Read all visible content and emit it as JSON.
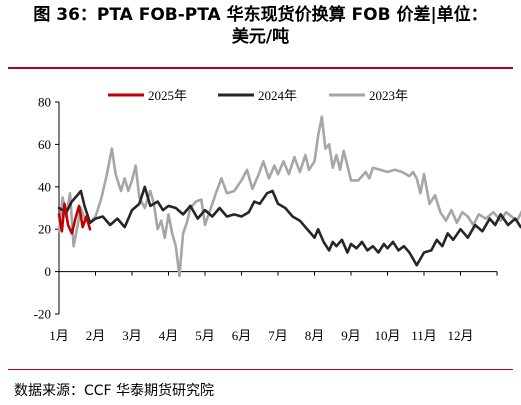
{
  "header": {
    "title_line1": "图 36：PTA FOB-PTA 华东现货价换算 FOB 价差|单位：",
    "title_line2": "美元/吨"
  },
  "footer": {
    "source": "数据来源：CCF  华泰期货研究院"
  },
  "chart_data": {
    "type": "line",
    "ylim": [
      -20,
      80
    ],
    "yticks": [
      "80",
      "60",
      "40",
      "20",
      "0",
      "-20"
    ],
    "xticks": [
      "1月",
      "2月",
      "3月",
      "4月",
      "5月",
      "6月",
      "7月",
      "8月",
      "9月",
      "10月",
      "11月",
      "12月"
    ],
    "grid": false,
    "legend_position": "top",
    "series": [
      {
        "name": "2025年",
        "color": "#c00000",
        "points": [
          [
            0.0,
            27
          ],
          [
            0.08,
            19
          ],
          [
            0.15,
            32
          ],
          [
            0.25,
            22
          ],
          [
            0.35,
            18
          ],
          [
            0.45,
            25
          ],
          [
            0.55,
            31
          ],
          [
            0.65,
            21
          ],
          [
            0.75,
            26
          ],
          [
            0.85,
            20
          ]
        ]
      },
      {
        "name": "2024年",
        "color": "#262626",
        "points": [
          [
            0.0,
            30
          ],
          [
            0.2,
            28
          ],
          [
            0.35,
            33
          ],
          [
            0.5,
            36
          ],
          [
            0.6,
            38
          ],
          [
            0.7,
            31
          ],
          [
            0.85,
            23
          ],
          [
            1.0,
            25
          ],
          [
            1.2,
            26
          ],
          [
            1.4,
            22
          ],
          [
            1.6,
            25
          ],
          [
            1.8,
            21
          ],
          [
            2.0,
            29
          ],
          [
            2.2,
            32
          ],
          [
            2.35,
            40
          ],
          [
            2.5,
            31
          ],
          [
            2.7,
            33
          ],
          [
            2.85,
            29
          ],
          [
            3.0,
            31
          ],
          [
            3.2,
            30
          ],
          [
            3.4,
            27
          ],
          [
            3.6,
            31
          ],
          [
            3.8,
            25
          ],
          [
            4.0,
            29
          ],
          [
            4.2,
            26
          ],
          [
            4.4,
            30
          ],
          [
            4.6,
            26
          ],
          [
            4.8,
            27
          ],
          [
            5.0,
            26
          ],
          [
            5.2,
            28
          ],
          [
            5.35,
            33
          ],
          [
            5.5,
            32
          ],
          [
            5.7,
            37
          ],
          [
            5.85,
            38
          ],
          [
            6.0,
            32
          ],
          [
            6.2,
            30
          ],
          [
            6.4,
            26
          ],
          [
            6.6,
            24
          ],
          [
            6.75,
            21
          ],
          [
            6.9,
            18
          ],
          [
            7.0,
            16
          ],
          [
            7.1,
            20
          ],
          [
            7.25,
            14
          ],
          [
            7.4,
            10
          ],
          [
            7.5,
            14
          ],
          [
            7.6,
            12
          ],
          [
            7.75,
            15
          ],
          [
            7.9,
            9
          ],
          [
            8.0,
            13
          ],
          [
            8.15,
            11
          ],
          [
            8.3,
            14
          ],
          [
            8.45,
            10
          ],
          [
            8.6,
            12
          ],
          [
            8.75,
            9
          ],
          [
            8.9,
            13
          ],
          [
            9.0,
            11
          ],
          [
            9.15,
            14
          ],
          [
            9.3,
            10
          ],
          [
            9.45,
            12
          ],
          [
            9.6,
            9
          ],
          [
            9.8,
            3
          ],
          [
            9.9,
            6
          ],
          [
            10.0,
            9
          ],
          [
            10.2,
            10
          ],
          [
            10.35,
            15
          ],
          [
            10.5,
            12
          ],
          [
            10.65,
            18
          ],
          [
            10.8,
            15
          ],
          [
            11.0,
            20
          ],
          [
            11.2,
            16
          ],
          [
            11.4,
            22
          ],
          [
            11.6,
            19
          ],
          [
            11.8,
            25
          ],
          [
            11.95,
            22
          ],
          [
            12.1,
            27
          ],
          [
            12.3,
            22
          ],
          [
            12.5,
            25
          ],
          [
            12.65,
            21
          ],
          [
            12.8,
            22
          ],
          [
            12.95,
            20
          ]
        ]
      },
      {
        "name": "2023年",
        "color": "#a6a6a6",
        "points": [
          [
            0.0,
            19
          ],
          [
            0.1,
            35
          ],
          [
            0.2,
            26
          ],
          [
            0.3,
            37
          ],
          [
            0.4,
            12
          ],
          [
            0.5,
            21
          ],
          [
            0.6,
            30
          ],
          [
            0.7,
            25
          ],
          [
            0.85,
            23
          ],
          [
            1.0,
            26
          ],
          [
            1.15,
            34
          ],
          [
            1.3,
            45
          ],
          [
            1.45,
            58
          ],
          [
            1.55,
            46
          ],
          [
            1.7,
            38
          ],
          [
            1.8,
            44
          ],
          [
            1.9,
            38
          ],
          [
            2.0,
            43
          ],
          [
            2.1,
            50
          ],
          [
            2.2,
            35
          ],
          [
            2.35,
            30
          ],
          [
            2.5,
            38
          ],
          [
            2.6,
            32
          ],
          [
            2.7,
            20
          ],
          [
            2.8,
            24
          ],
          [
            2.9,
            16
          ],
          [
            3.0,
            27
          ],
          [
            3.1,
            18
          ],
          [
            3.2,
            12
          ],
          [
            3.3,
            -2
          ],
          [
            3.4,
            18
          ],
          [
            3.5,
            23
          ],
          [
            3.6,
            30
          ],
          [
            3.75,
            33
          ],
          [
            3.9,
            34
          ],
          [
            4.0,
            22
          ],
          [
            4.2,
            32
          ],
          [
            4.3,
            37
          ],
          [
            4.45,
            44
          ],
          [
            4.6,
            37
          ],
          [
            4.8,
            38
          ],
          [
            5.0,
            43
          ],
          [
            5.15,
            48
          ],
          [
            5.3,
            39
          ],
          [
            5.45,
            45
          ],
          [
            5.6,
            52
          ],
          [
            5.75,
            44
          ],
          [
            5.9,
            50
          ],
          [
            6.0,
            46
          ],
          [
            6.15,
            52
          ],
          [
            6.3,
            46
          ],
          [
            6.45,
            54
          ],
          [
            6.6,
            47
          ],
          [
            6.75,
            55
          ],
          [
            6.85,
            48
          ],
          [
            7.0,
            52
          ],
          [
            7.1,
            64
          ],
          [
            7.2,
            73
          ],
          [
            7.3,
            58
          ],
          [
            7.4,
            60
          ],
          [
            7.5,
            49
          ],
          [
            7.6,
            55
          ],
          [
            7.7,
            48
          ],
          [
            7.8,
            57
          ],
          [
            7.9,
            50
          ],
          [
            8.0,
            43
          ],
          [
            8.2,
            43
          ],
          [
            8.4,
            47
          ],
          [
            8.5,
            44
          ],
          [
            8.6,
            49
          ],
          [
            8.8,
            48
          ],
          [
            9.0,
            47
          ],
          [
            9.2,
            48
          ],
          [
            9.4,
            47
          ],
          [
            9.6,
            45
          ],
          [
            9.7,
            47
          ],
          [
            9.8,
            44
          ],
          [
            9.9,
            37
          ],
          [
            10.0,
            46
          ],
          [
            10.15,
            32
          ],
          [
            10.3,
            36
          ],
          [
            10.45,
            28
          ],
          [
            10.6,
            24
          ],
          [
            10.75,
            29
          ],
          [
            10.9,
            23
          ],
          [
            11.05,
            28
          ],
          [
            11.2,
            26
          ],
          [
            11.35,
            22
          ],
          [
            11.5,
            27
          ],
          [
            11.7,
            25
          ],
          [
            11.9,
            28
          ],
          [
            12.1,
            24
          ],
          [
            12.25,
            28
          ],
          [
            12.4,
            26
          ],
          [
            12.55,
            24
          ],
          [
            12.7,
            29
          ],
          [
            12.85,
            23
          ],
          [
            12.95,
            21
          ]
        ]
      }
    ]
  }
}
